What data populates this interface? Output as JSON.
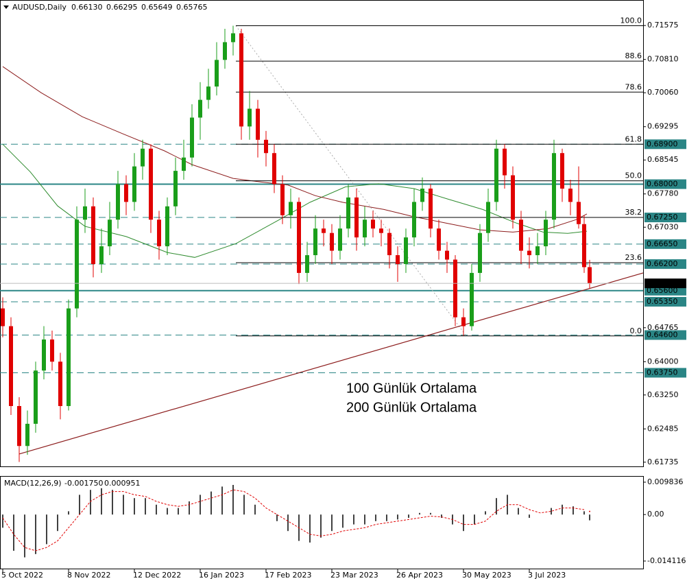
{
  "chart_data": {
    "type": "candlestick",
    "symbol": "AUDUSD,Daily",
    "last_bar": {
      "x": 214,
      "values": [
        {
          "value": 0.6613,
          "label": "0.66130"
        },
        {
          "value": 0.66295,
          "label": "0.66295"
        },
        {
          "value": 0.65649,
          "label": "0.65649"
        },
        {
          "value": 0.65765,
          "label": "0.65765"
        }
      ]
    },
    "bull_color": "#1a9e1a",
    "bear_color": "#e00000",
    "xlim": [
      -1,
      233.5
    ],
    "xticks": [
      {
        "value": 0,
        "label": "5 Oct 2022"
      },
      {
        "value": 24,
        "label": "8 Nov 2022"
      },
      {
        "value": 48,
        "label": "12 Dec 2022"
      },
      {
        "value": 72,
        "label": "16 Jan 2023"
      },
      {
        "value": 96,
        "label": "17 Feb 2023"
      },
      {
        "value": 120,
        "label": "23 Mar 2023"
      },
      {
        "value": 144,
        "label": "26 Apr 2023"
      },
      {
        "value": 168,
        "label": "30 May 2023"
      },
      {
        "value": 192,
        "label": "3 Jul 2023"
      }
    ],
    "ylim": [
      0.6164,
      0.7215
    ],
    "yticks": [
      0.71575,
      {
        "value": 0.7081,
        "label": "0.70810"
      },
      {
        "value": 0.7006,
        "label": "0.70060"
      },
      0.69295,
      0.68545,
      {
        "value": 0.6778,
        "label": "0.67780"
      },
      {
        "value": 0.6703,
        "label": "0.67030"
      },
      0.64765,
      {
        "value": 0.64,
        "label": "0.64000"
      },
      {
        "value": 0.6325,
        "label": "0.63250"
      },
      0.62485,
      0.61735
    ],
    "level_color": "#2a8585",
    "levels": [
      {
        "value": 0.689,
        "label": "0.68900",
        "style": "dashed"
      },
      {
        "value": 0.68,
        "label": "0.68000",
        "style": "solid"
      },
      {
        "value": 0.6725,
        "label": "0.67250",
        "style": "dashed"
      },
      {
        "value": 0.6665,
        "label": "0.66650",
        "style": "dashed"
      },
      {
        "value": 0.662,
        "label": "0.66200",
        "style": "dashed"
      },
      {
        "value": 0.656,
        "label": "0.65600",
        "style": "solid"
      },
      {
        "value": 0.6535,
        "label": "0.65350",
        "style": "dashed"
      },
      {
        "value": 0.646,
        "label": "0.64600",
        "style": "dashed"
      },
      {
        "value": 0.6375,
        "label": "0.63750",
        "style": "dashed"
      }
    ],
    "fib": {
      "high": 0.7157,
      "low": 0.6458,
      "x_high": 85,
      "x_low": 169,
      "levels": [
        {
          "value": 100,
          "label": "100.0"
        },
        88.6,
        78.6,
        61.8,
        {
          "value": 50,
          "label": "50.0"
        },
        38.2,
        23.6,
        {
          "value": 0,
          "label": "0.0"
        }
      ]
    },
    "trendline": {
      "color": "#8b1a1a",
      "x": [
        6,
        233.5
      ],
      "values": [
        0.6192,
        0.66
      ]
    },
    "series": [
      {
        "name": "100 Günlük Ortalama",
        "color": "#2e8b2e",
        "label_color": "#1a8f1a",
        "x": [
          0,
          10,
          20,
          30,
          45,
          60,
          70,
          85,
          100,
          112,
          125,
          137,
          150,
          162,
          175,
          187,
          197,
          206,
          213
        ],
        "values": [
          0.689,
          0.6828,
          0.6751,
          0.6705,
          0.6682,
          0.6646,
          0.6635,
          0.6666,
          0.6717,
          0.6759,
          0.6794,
          0.6801,
          0.679,
          0.6767,
          0.6743,
          0.6713,
          0.6692,
          0.6689,
          0.6694
        ]
      },
      {
        "name": "200 Günlük Ortalama",
        "color": "#8b1a1a",
        "label_color": "#8b1a8b",
        "x": [
          0,
          14,
          29,
          44,
          59,
          69,
          84,
          94,
          104,
          114,
          124,
          139,
          149,
          161,
          174,
          186,
          199,
          209,
          213
        ],
        "values": [
          0.7065,
          0.7006,
          0.6952,
          0.6913,
          0.6875,
          0.6844,
          0.6813,
          0.6805,
          0.6798,
          0.6774,
          0.6759,
          0.6743,
          0.6728,
          0.6713,
          0.6697,
          0.6692,
          0.67,
          0.672,
          0.6733
        ]
      }
    ],
    "candles": [
      [
        0,
        0.652,
        0.6545,
        0.6455,
        0.648
      ],
      [
        3,
        0.648,
        0.65,
        0.628,
        0.63
      ],
      [
        6,
        0.63,
        0.632,
        0.6174,
        0.621
      ],
      [
        9,
        0.621,
        0.629,
        0.619,
        0.626
      ],
      [
        12,
        0.626,
        0.64,
        0.624,
        0.638
      ],
      [
        15,
        0.638,
        0.648,
        0.636,
        0.645
      ],
      [
        18,
        0.645,
        0.647,
        0.638,
        0.64
      ],
      [
        21,
        0.64,
        0.642,
        0.627,
        0.63
      ],
      [
        24,
        0.63,
        0.654,
        0.629,
        0.652
      ],
      [
        27,
        0.652,
        0.675,
        0.65,
        0.672
      ],
      [
        30,
        0.672,
        0.679,
        0.669,
        0.675
      ],
      [
        33,
        0.675,
        0.677,
        0.659,
        0.662
      ],
      [
        36,
        0.662,
        0.67,
        0.66,
        0.666
      ],
      [
        39,
        0.666,
        0.676,
        0.664,
        0.672
      ],
      [
        42,
        0.672,
        0.683,
        0.67,
        0.68
      ],
      [
        45,
        0.68,
        0.682,
        0.673,
        0.676
      ],
      [
        48,
        0.676,
        0.687,
        0.674,
        0.684
      ],
      [
        51,
        0.684,
        0.69,
        0.681,
        0.688
      ],
      [
        54,
        0.688,
        0.689,
        0.669,
        0.672
      ],
      [
        57,
        0.672,
        0.674,
        0.663,
        0.666
      ],
      [
        60,
        0.666,
        0.677,
        0.664,
        0.675
      ],
      [
        63,
        0.675,
        0.686,
        0.673,
        0.683
      ],
      [
        66,
        0.683,
        0.69,
        0.681,
        0.686
      ],
      [
        69,
        0.686,
        0.698,
        0.684,
        0.695
      ],
      [
        72,
        0.695,
        0.703,
        0.69,
        0.699
      ],
      [
        75,
        0.699,
        0.706,
        0.697,
        0.702
      ],
      [
        78,
        0.702,
        0.712,
        0.7,
        0.708
      ],
      [
        81,
        0.708,
        0.715,
        0.706,
        0.712
      ],
      [
        84,
        0.712,
        0.7157,
        0.709,
        0.714
      ],
      [
        87,
        0.714,
        0.715,
        0.69,
        0.693
      ],
      [
        90,
        0.693,
        0.701,
        0.69,
        0.697
      ],
      [
        93,
        0.697,
        0.699,
        0.686,
        0.69
      ],
      [
        96,
        0.69,
        0.692,
        0.684,
        0.687
      ],
      [
        99,
        0.687,
        0.689,
        0.678,
        0.68
      ],
      [
        102,
        0.68,
        0.682,
        0.671,
        0.673
      ],
      [
        105,
        0.673,
        0.679,
        0.67,
        0.676
      ],
      [
        108,
        0.676,
        0.677,
        0.6575,
        0.66
      ],
      [
        111,
        0.66,
        0.667,
        0.658,
        0.664
      ],
      [
        114,
        0.664,
        0.673,
        0.662,
        0.67
      ],
      [
        117,
        0.67,
        0.672,
        0.666,
        0.669
      ],
      [
        120,
        0.669,
        0.671,
        0.662,
        0.665
      ],
      [
        123,
        0.665,
        0.673,
        0.663,
        0.67
      ],
      [
        126,
        0.67,
        0.68,
        0.668,
        0.677
      ],
      [
        129,
        0.677,
        0.679,
        0.665,
        0.668
      ],
      [
        132,
        0.668,
        0.675,
        0.666,
        0.672
      ],
      [
        135,
        0.672,
        0.674,
        0.668,
        0.67
      ],
      [
        138,
        0.67,
        0.672,
        0.666,
        0.669
      ],
      [
        141,
        0.669,
        0.67,
        0.661,
        0.664
      ],
      [
        144,
        0.664,
        0.666,
        0.658,
        0.662
      ],
      [
        147,
        0.662,
        0.67,
        0.66,
        0.668
      ],
      [
        150,
        0.668,
        0.679,
        0.666,
        0.676
      ],
      [
        153,
        0.676,
        0.6815,
        0.674,
        0.679
      ],
      [
        156,
        0.679,
        0.68,
        0.668,
        0.67
      ],
      [
        159,
        0.67,
        0.672,
        0.663,
        0.665
      ],
      [
        162,
        0.665,
        0.667,
        0.66,
        0.663
      ],
      [
        165,
        0.663,
        0.664,
        0.648,
        0.65
      ],
      [
        168,
        0.65,
        0.652,
        0.6458,
        0.648
      ],
      [
        171,
        0.648,
        0.662,
        0.647,
        0.66
      ],
      [
        174,
        0.66,
        0.671,
        0.658,
        0.669
      ],
      [
        177,
        0.669,
        0.679,
        0.667,
        0.676
      ],
      [
        180,
        0.676,
        0.69,
        0.674,
        0.688
      ],
      [
        183,
        0.688,
        0.689,
        0.679,
        0.682
      ],
      [
        186,
        0.682,
        0.684,
        0.67,
        0.672
      ],
      [
        189,
        0.672,
        0.674,
        0.662,
        0.665
      ],
      [
        192,
        0.665,
        0.668,
        0.661,
        0.664
      ],
      [
        195,
        0.664,
        0.669,
        0.662,
        0.666
      ],
      [
        198,
        0.666,
        0.674,
        0.664,
        0.672
      ],
      [
        201,
        0.672,
        0.69,
        0.67,
        0.687
      ],
      [
        204,
        0.687,
        0.688,
        0.676,
        0.679
      ],
      [
        207,
        0.679,
        0.681,
        0.673,
        0.676
      ],
      [
        210,
        0.676,
        0.684,
        0.67,
        0.671
      ],
      [
        212,
        0.671,
        0.673,
        0.66,
        0.6613
      ]
    ],
    "macd": {
      "label": "MACD(12,26,9)",
      "last": [
        {
          "value": -0.00175,
          "label": "-0.001750"
        },
        {
          "value": 0.000951,
          "label": "0.000951"
        }
      ],
      "ylim": [
        -0.01662,
        0.0115
      ],
      "yticks": [
        0.009836,
        {
          "value": 0,
          "label": "0.00"
        },
        -0.014116
      ],
      "signal_color": "#e00000",
      "x": [
        0,
        4,
        8,
        12,
        16,
        20,
        24,
        28,
        32,
        36,
        40,
        44,
        48,
        52,
        56,
        60,
        64,
        68,
        72,
        76,
        80,
        84,
        88,
        92,
        96,
        100,
        104,
        108,
        112,
        116,
        120,
        124,
        128,
        132,
        136,
        140,
        144,
        148,
        152,
        156,
        160,
        164,
        168,
        172,
        176,
        180,
        184,
        188,
        192,
        196,
        200,
        204,
        208,
        212
      ],
      "hist": [
        -0.004,
        -0.011,
        -0.013,
        -0.012,
        -0.009,
        -0.005,
        0.001,
        0.006,
        0.0075,
        0.008,
        0.0075,
        0.006,
        0.005,
        0.005,
        0.003,
        0.002,
        0.002,
        0.004,
        0.006,
        0.007,
        0.0085,
        0.009,
        0.006,
        0.003,
        0,
        -0.002,
        -0.005,
        -0.008,
        -0.0085,
        -0.007,
        -0.005,
        -0.004,
        -0.003,
        -0.003,
        -0.002,
        -0.002,
        -0.0015,
        -0.001,
        0.0005,
        0.0005,
        -0.001,
        -0.003,
        -0.005,
        -0.003,
        0.001,
        0.005,
        0.006,
        0.002,
        -0.001,
        0,
        0.002,
        0.003,
        0.0025,
        0.001
      ],
      "signal": [
        -0.001,
        -0.006,
        -0.01,
        -0.011,
        -0.01,
        -0.008,
        -0.004,
        0,
        0.004,
        0.006,
        0.007,
        0.007,
        0.006,
        0.0055,
        0.004,
        0.003,
        0.0025,
        0.003,
        0.004,
        0.005,
        0.006,
        0.0075,
        0.007,
        0.005,
        0.002,
        0,
        -0.002,
        -0.004,
        -0.006,
        -0.0065,
        -0.006,
        -0.005,
        -0.0045,
        -0.004,
        -0.003,
        -0.0025,
        -0.002,
        -0.0015,
        -0.001,
        -0.0005,
        -0.0007,
        -0.0015,
        -0.003,
        -0.003,
        -0.002,
        0.001,
        0.003,
        0.003,
        0.0015,
        0.0005,
        0.001,
        0.002,
        0.002,
        0.0015
      ]
    }
  }
}
